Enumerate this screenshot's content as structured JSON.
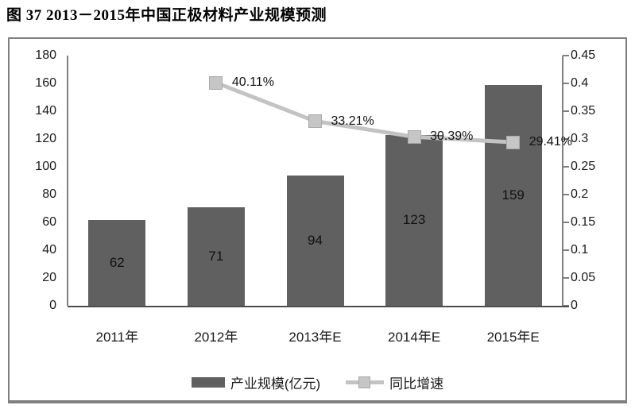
{
  "title": "图  37 2013－2015年中国正极材料产业规模预测",
  "chart_data": {
    "type": "bar",
    "subtype": "bar-line-combo",
    "categories": [
      "2011年",
      "2012年",
      "2013年E",
      "2014年E",
      "2015年E"
    ],
    "series": [
      {
        "name": "产业规模(亿元)",
        "type": "bar",
        "axis": "left",
        "values": [
          62,
          71,
          94,
          123,
          159
        ],
        "data_labels": [
          "62",
          "71",
          "94",
          "123",
          "159"
        ],
        "color": "#606060"
      },
      {
        "name": "同比增速",
        "type": "line",
        "axis": "right",
        "values": [
          null,
          0.4011,
          0.3321,
          0.3039,
          0.2941
        ],
        "data_labels": [
          "",
          "40.11%",
          "33.21%",
          "30.39%",
          "29.41%"
        ],
        "color": "#c3c3c3",
        "marker_color": "#c6c6c6",
        "marker_border_color": "#a8a8a8"
      }
    ],
    "left_axis": {
      "min": 0,
      "max": 180,
      "step": 20,
      "ticks": [
        "0",
        "20",
        "40",
        "60",
        "80",
        "100",
        "120",
        "140",
        "160",
        "180"
      ]
    },
    "right_axis": {
      "min": 0,
      "max": 0.45,
      "step": 0.05,
      "ticks": [
        "0",
        "0.05",
        "0.1",
        "0.15",
        "0.2",
        "0.25",
        "0.3",
        "0.35",
        "0.4",
        "0.45"
      ]
    },
    "legend": [
      "产业规模(亿元)",
      "同比增速"
    ],
    "legend_position": "bottom",
    "grid": false
  },
  "colors": {
    "bar": "#606060",
    "line": "#c3c3c3",
    "marker": "#c6c6c6",
    "marker_border": "#a8a8a8",
    "axis": "#7f7f7f",
    "baseline": "#4d4d4d",
    "frame_border": "#7f7f7f",
    "text": "#1a1a1a"
  }
}
